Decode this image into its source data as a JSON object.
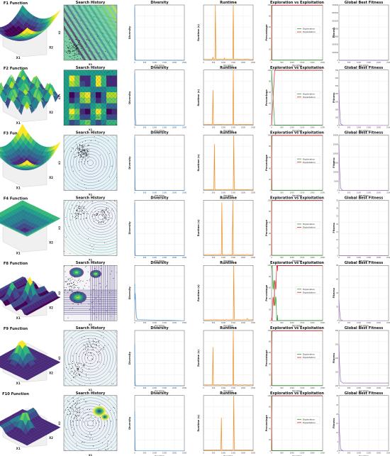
{
  "colors": {
    "diversity": "#3d8fd6",
    "runtime": "#f28a1b",
    "exploration": "#2ca02c",
    "exploitation": "#d62728",
    "best_fitness": "#9467bd",
    "grid": "#dcdcdc",
    "scatter": "#000000"
  },
  "col_titles": {
    "search": "Search History",
    "diversity": "Diversity",
    "runtime": "Runtime",
    "exp": "Exploration vs Exploitation",
    "best": "Global Best Fitness"
  },
  "labels": {
    "iteration": "Iteration",
    "diversity": "Diversity",
    "runtime": "Runtime (s)",
    "percentage": "Percentage",
    "fitness": "Fitness",
    "x1": "X1",
    "x2": "X2",
    "legend_exploration": "Exploration",
    "legend_exploitation": "Exploitation"
  },
  "chart_data": [
    {
      "function": "F1 Function",
      "surface_colormap": "viridis",
      "search_contour_cmap": "viridis",
      "diversity": {
        "type": "line",
        "x": [
          0,
          10,
          20,
          40,
          2500
        ],
        "y": [
          100,
          40,
          8,
          0.2,
          0
        ],
        "xlim": [
          0,
          2500
        ],
        "ylim": [
          0,
          105
        ]
      },
      "runtime": {
        "type": "line",
        "xlim": [
          0,
          2500
        ],
        "ylim": [
          0,
          0.05
        ],
        "spikes": [
          {
            "x": 470,
            "y": 0.003
          },
          {
            "x": 600,
            "y": 0.05
          },
          {
            "x": 1500,
            "y": 0.05
          },
          {
            "x": 1060,
            "y": 0.002
          }
        ]
      },
      "exploration_vs_exploitation": {
        "type": "line",
        "xlim": [
          0,
          2500
        ],
        "ylim": [
          0,
          100
        ],
        "exploration_start": 100,
        "exploitation_start": 0,
        "switch_iter": 20
      },
      "best_fitness": {
        "type": "line",
        "xlim": [
          0,
          2500
        ],
        "ylim": [
          0,
          700000
        ],
        "yticks": [
          0,
          100000,
          200000,
          300000,
          400000,
          500000,
          600000,
          700000
        ],
        "ytick_labels": [
          "0",
          "100000",
          "200000",
          "300000",
          "400000",
          "500000",
          "600000",
          "700000"
        ],
        "start": 0,
        "final": 0
      }
    },
    {
      "function": "F2 Function",
      "surface_colormap": "viridis",
      "search_contour_cmap": "viridis",
      "diversity": {
        "type": "line",
        "x": [
          0,
          15,
          30,
          60,
          2500
        ],
        "y": [
          100,
          55,
          15,
          0.5,
          0
        ],
        "xlim": [
          0,
          2500
        ],
        "ylim": [
          0,
          105
        ]
      },
      "runtime": {
        "type": "line",
        "xlim": [
          0,
          2500
        ],
        "ylim": [
          0,
          0.05
        ],
        "spikes": [
          {
            "x": 470,
            "y": 0.032
          },
          {
            "x": 1500,
            "y": 0.05
          }
        ]
      },
      "exploration_vs_exploitation": {
        "type": "line",
        "xlim": [
          0,
          2500
        ],
        "ylim": [
          0,
          100
        ],
        "exploration_start": 100,
        "exploitation_start": 0,
        "switch_iter": 150
      },
      "best_fitness": {
        "type": "line",
        "xlim": [
          0,
          2500
        ],
        "ylim": [
          0,
          700
        ],
        "yticks": [
          0,
          100,
          200,
          300,
          400,
          500,
          600,
          700
        ],
        "ytick_labels": [
          "0",
          "100",
          "200",
          "300",
          "400",
          "500",
          "600",
          "700"
        ],
        "start": 450,
        "final": 0
      }
    },
    {
      "function": "F3 Function",
      "surface_colormap": "viridis",
      "search_contour_cmap": "viridis",
      "diversity": {
        "type": "line",
        "x": [
          0,
          10,
          20,
          40,
          2500
        ],
        "y": [
          100,
          35,
          6,
          0.2,
          0
        ],
        "xlim": [
          0,
          2500
        ],
        "ylim": [
          0,
          105
        ]
      },
      "runtime": {
        "type": "line",
        "xlim": [
          0,
          2500
        ],
        "ylim": [
          0,
          0.05
        ],
        "spikes": [
          {
            "x": 560,
            "y": 0.042
          },
          {
            "x": 1520,
            "y": 0.05
          }
        ]
      },
      "exploration_vs_exploitation": {
        "type": "line",
        "xlim": [
          0,
          2500
        ],
        "ylim": [
          0,
          100
        ],
        "exploration_start": 100,
        "exploitation_start": 0,
        "switch_iter": 15
      },
      "best_fitness": {
        "type": "line",
        "xlim": [
          0,
          2500
        ],
        "ylim": [
          0,
          30000
        ],
        "yticks": [
          0,
          5000,
          10000,
          15000,
          20000,
          25000,
          30000
        ],
        "ytick_labels": [
          "0",
          "5000",
          "10000",
          "15000",
          "20000",
          "25000",
          "30000"
        ],
        "start": 25000,
        "final": 0
      }
    },
    {
      "function": "F4 Function",
      "surface_colormap": "viridis",
      "search_contour_cmap": "viridis",
      "diversity": {
        "type": "line",
        "x": [
          0,
          10,
          20,
          40,
          2500
        ],
        "y": [
          100,
          30,
          5,
          0.2,
          0
        ],
        "xlim": [
          0,
          2500
        ],
        "ylim": [
          0,
          105
        ]
      },
      "runtime": {
        "type": "line",
        "xlim": [
          0,
          2500
        ],
        "ylim": [
          0,
          0.05
        ],
        "spikes": [
          {
            "x": 920,
            "y": 0.048
          },
          {
            "x": 1480,
            "y": 0.05
          }
        ]
      },
      "exploration_vs_exploitation": {
        "type": "line",
        "xlim": [
          0,
          2500
        ],
        "ylim": [
          0,
          100
        ],
        "exploration_start": 100,
        "exploitation_start": 0,
        "switch_iter": 10
      },
      "best_fitness": {
        "type": "line",
        "xlim": [
          0,
          2500
        ],
        "ylim": [
          0,
          35
        ],
        "yticks": [
          0,
          5,
          10,
          15,
          20,
          25,
          30,
          35
        ],
        "ytick_labels": [
          "0",
          "5",
          "10",
          "15",
          "20",
          "25",
          "30",
          "35"
        ],
        "start": 0,
        "final": 0
      }
    },
    {
      "function": "F8 Function",
      "surface_colormap": "viridis",
      "search_contour_cmap": "viridis",
      "diversity": {
        "type": "line",
        "x": [
          0,
          10,
          25,
          50,
          80,
          110,
          140,
          2500
        ],
        "y": [
          70,
          40,
          52,
          30,
          10,
          4,
          2,
          0
        ],
        "xlim": [
          0,
          2500
        ],
        "ylim": [
          0,
          105
        ]
      },
      "runtime": {
        "type": "line",
        "xlim": [
          0,
          2500
        ],
        "ylim": [
          0,
          0.05
        ],
        "spikes": [
          {
            "x": 1520,
            "y": 0.05
          },
          {
            "x": 2200,
            "y": 0.002
          }
        ]
      },
      "exploration_vs_exploitation": {
        "type": "line",
        "xlim": [
          0,
          2500
        ],
        "ylim": [
          0,
          100
        ],
        "exploration_start": 95,
        "exploitation_start": 5,
        "switch_iter": 300,
        "oscillate": true
      },
      "best_fitness": {
        "type": "line",
        "xlim": [
          0,
          2500
        ],
        "ylim": [
          0,
          80
        ],
        "yticks": [
          0,
          20,
          40,
          60,
          80
        ],
        "ytick_labels": [
          "0",
          "20",
          "40",
          "60",
          "80"
        ],
        "start": 30,
        "final": 0
      }
    },
    {
      "function": "F9 Function",
      "surface_colormap": "viridis",
      "search_contour_cmap": "viridis",
      "diversity": {
        "type": "line",
        "x": [
          0,
          10,
          20,
          40,
          2500
        ],
        "y": [
          80,
          40,
          8,
          0.2,
          0
        ],
        "xlim": [
          0,
          2500
        ],
        "ylim": [
          0,
          105
        ]
      },
      "runtime": {
        "type": "line",
        "xlim": [
          0,
          2500
        ],
        "ylim": [
          0,
          0.05
        ],
        "spikes": [
          {
            "x": 470,
            "y": 0.035
          },
          {
            "x": 1500,
            "y": 0.05
          }
        ]
      },
      "exploration_vs_exploitation": {
        "type": "line",
        "xlim": [
          0,
          2500
        ],
        "ylim": [
          0,
          100
        ],
        "exploration_start": 100,
        "exploitation_start": 0,
        "switch_iter": 15
      },
      "best_fitness": {
        "type": "line",
        "xlim": [
          0,
          2500
        ],
        "ylim": [
          100,
          300
        ],
        "yticks": [
          100,
          150,
          200,
          250,
          300
        ],
        "ytick_labels": [
          "100",
          "150",
          "200",
          "250",
          "300"
        ],
        "start": 250,
        "final": 110
      }
    },
    {
      "function": "F10 Function",
      "surface_colormap": "viridis",
      "search_contour_cmap": "viridis",
      "diversity": {
        "type": "line",
        "x": [
          0,
          10,
          20,
          40,
          2500
        ],
        "y": [
          75,
          30,
          6,
          0.2,
          0
        ],
        "xlim": [
          0,
          2500
        ],
        "ylim": [
          0,
          105
        ]
      },
      "runtime": {
        "type": "line",
        "xlim": [
          0,
          2500
        ],
        "ylim": [
          0,
          0.05
        ],
        "spikes": [
          {
            "x": 900,
            "y": 0.03
          },
          {
            "x": 1520,
            "y": 0.05
          }
        ]
      },
      "exploration_vs_exploitation": {
        "type": "line",
        "xlim": [
          0,
          2500
        ],
        "ylim": [
          0,
          100
        ],
        "exploration_start": 100,
        "exploitation_start": 0,
        "switch_iter": 15
      },
      "best_fitness": {
        "type": "line",
        "xlim": [
          0,
          2500
        ],
        "ylim": [
          0,
          30
        ],
        "yticks": [
          0,
          5,
          10,
          15,
          20,
          25,
          30
        ],
        "ytick_labels": [
          "0",
          "5",
          "10",
          "15",
          "20",
          "25",
          "30"
        ],
        "start": 20,
        "final": 0
      }
    }
  ]
}
